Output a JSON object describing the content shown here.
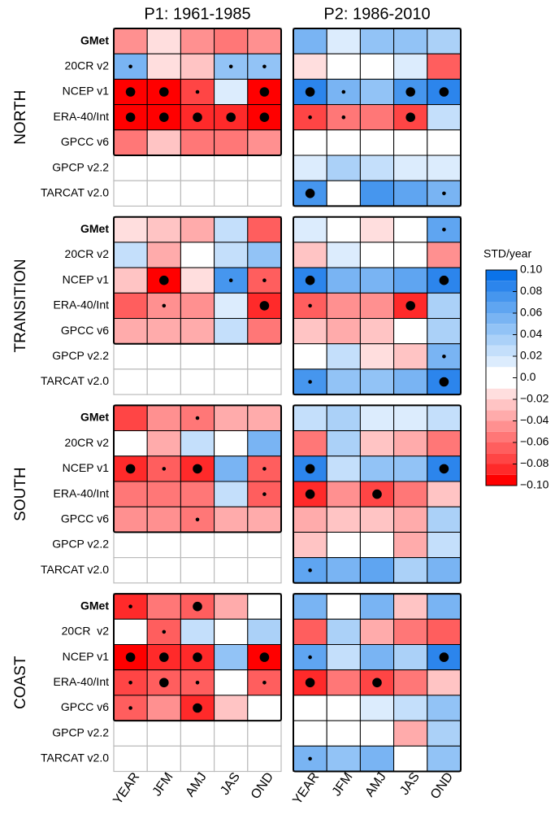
{
  "chart_data": {
    "type": "heatmap",
    "panels": [
      "P1: 1961-1985",
      "P2: 1986-2010"
    ],
    "seasons": [
      "YEAR",
      "JFM",
      "AMJ",
      "JAS",
      "OND"
    ],
    "colorbar_label": "STD/year",
    "zlim": [
      -0.1,
      0.1
    ],
    "zticks": [
      {
        "value": 0.1,
        "label": "0.10"
      },
      {
        "value": 0.08,
        "label": "0.08"
      },
      {
        "value": 0.06,
        "label": "0.06"
      },
      {
        "value": 0.04,
        "label": "0.04"
      },
      {
        "value": 0.02,
        "label": "0.02"
      },
      {
        "value": 0,
        "label": "0.0"
      },
      {
        "value": -0.02,
        "label": "−0.02"
      },
      {
        "value": -0.04,
        "label": "−0.04"
      },
      {
        "value": -0.06,
        "label": "−0.06"
      },
      {
        "value": -0.08,
        "label": "−0.08"
      },
      {
        "value": -0.1,
        "label": "−0.10"
      }
    ],
    "colors": [
      "#ff0000",
      "#ff2a2a",
      "#ff4545",
      "#ff5e5e",
      "#ff7777",
      "#ff9090",
      "#ffabab",
      "#ffc4c4",
      "#ffdede",
      "#ffffff",
      "#ffffff",
      "#dcecfd",
      "#c4dffb",
      "#abd1f8",
      "#92c3f6",
      "#79b4f3",
      "#5fa5f1",
      "#4696ee",
      "#2c85ec",
      "#0b73e9"
    ],
    "regions": [
      {
        "name": "NORTH",
        "datasets": [
          "GMet",
          "20CR v2",
          "NCEP v1",
          "ERA-40/Int",
          "GPCC v6",
          "GPCP v2.2",
          "TARCAT v2.0"
        ],
        "panels": [
          {
            "values": [
              [
                -0.045,
                -0.015,
                -0.045,
                -0.055,
                -0.045
              ],
              [
                0.055,
                -0.015,
                -0.025,
                0.045,
                0.045
              ],
              [
                -0.095,
                -0.095,
                -0.075,
                0.015,
                -0.095
              ],
              [
                -0.095,
                -0.095,
                -0.085,
                -0.085,
                -0.095
              ],
              [
                -0.055,
                -0.025,
                -0.055,
                -0.055,
                -0.045
              ],
              [
                null,
                null,
                null,
                null,
                null
              ],
              [
                null,
                null,
                null,
                null,
                null
              ]
            ],
            "dots": [
              [
                0,
                0,
                0,
                0,
                0
              ],
              [
                1,
                0,
                0,
                1,
                1
              ],
              [
                2,
                2,
                1,
                0,
                2
              ],
              [
                2,
                2,
                2,
                2,
                2
              ],
              [
                0,
                0,
                0,
                0,
                0
              ],
              [
                0,
                0,
                0,
                0,
                0
              ],
              [
                0,
                0,
                0,
                0,
                0
              ]
            ]
          },
          {
            "values": [
              [
                0.055,
                0.015,
                0.045,
                0.045,
                0.035
              ],
              [
                -0.015,
                0.005,
                0.005,
                0.015,
                -0.065
              ],
              [
                0.085,
                0.055,
                0.045,
                0.075,
                0.085
              ],
              [
                -0.075,
                -0.055,
                -0.055,
                -0.075,
                0.025
              ],
              [
                0.005,
                0.005,
                0.005,
                0.005,
                0.005
              ],
              [
                0.015,
                0.035,
                0.025,
                0.015,
                0.015
              ],
              [
                0.075,
                0.005,
                0.075,
                0.065,
                0.055
              ]
            ],
            "dots": [
              [
                0,
                0,
                0,
                0,
                0
              ],
              [
                0,
                0,
                0,
                0,
                0
              ],
              [
                2,
                1,
                0,
                2,
                2
              ],
              [
                1,
                1,
                0,
                2,
                0
              ],
              [
                0,
                0,
                0,
                0,
                0
              ],
              [
                0,
                0,
                0,
                0,
                0
              ],
              [
                2,
                0,
                0,
                0,
                1
              ]
            ]
          }
        ]
      },
      {
        "name": "TRANSITION",
        "datasets": [
          "GMet",
          "20CR v2",
          "NCEP v1",
          "ERA-40/Int",
          "GPCC v6",
          "GPCP v2.2",
          "TARCAT v2.0"
        ],
        "panels": [
          {
            "values": [
              [
                -0.015,
                -0.025,
                -0.035,
                0.025,
                -0.065
              ],
              [
                0.025,
                -0.035,
                0.005,
                0.025,
                0.045
              ],
              [
                -0.025,
                -0.095,
                -0.015,
                0.075,
                -0.065
              ],
              [
                -0.065,
                -0.045,
                -0.045,
                0.015,
                -0.085
              ],
              [
                -0.035,
                -0.035,
                -0.035,
                0.025,
                -0.055
              ],
              [
                null,
                null,
                null,
                null,
                null
              ],
              [
                null,
                null,
                null,
                null,
                null
              ]
            ],
            "dots": [
              [
                0,
                0,
                0,
                0,
                0
              ],
              [
                0,
                0,
                0,
                0,
                0
              ],
              [
                0,
                2,
                0,
                1,
                1
              ],
              [
                0,
                1,
                0,
                0,
                2
              ],
              [
                0,
                0,
                0,
                0,
                0
              ],
              [
                0,
                0,
                0,
                0,
                0
              ],
              [
                0,
                0,
                0,
                0,
                0
              ]
            ]
          },
          {
            "values": [
              [
                0.015,
                0.005,
                -0.015,
                0.005,
                0.065
              ],
              [
                -0.025,
                0.015,
                0.005,
                0.005,
                -0.045
              ],
              [
                0.085,
                0.055,
                0.055,
                0.065,
                0.085
              ],
              [
                -0.065,
                -0.045,
                -0.045,
                -0.085,
                0.035
              ],
              [
                -0.025,
                -0.035,
                -0.025,
                0.005,
                0.035
              ],
              [
                0.005,
                0.025,
                -0.015,
                -0.025,
                0.055
              ],
              [
                0.075,
                0.045,
                0.045,
                0.055,
                0.085
              ]
            ],
            "dots": [
              [
                0,
                0,
                0,
                0,
                1
              ],
              [
                0,
                0,
                0,
                0,
                0
              ],
              [
                2,
                0,
                0,
                0,
                2
              ],
              [
                1,
                0,
                0,
                2,
                0
              ],
              [
                0,
                0,
                0,
                0,
                0
              ],
              [
                0,
                0,
                0,
                0,
                1
              ],
              [
                1,
                0,
                0,
                0,
                2
              ]
            ]
          }
        ]
      },
      {
        "name": "SOUTH",
        "datasets": [
          "GMet",
          "20CR v2",
          "NCEP v1",
          "ERA-40/Int",
          "GPCC v6",
          "GPCP v2.2",
          "TARCAT v2.0"
        ],
        "panels": [
          {
            "values": [
              [
                -0.075,
                -0.045,
                -0.055,
                -0.035,
                -0.035
              ],
              [
                0.005,
                -0.035,
                0.025,
                0.005,
                0.055
              ],
              [
                -0.085,
                -0.065,
                -0.085,
                0.055,
                -0.065
              ],
              [
                -0.055,
                -0.055,
                -0.055,
                0.025,
                -0.065
              ],
              [
                -0.045,
                -0.045,
                -0.055,
                -0.035,
                -0.035
              ],
              [
                null,
                null,
                null,
                null,
                null
              ],
              [
                null,
                null,
                null,
                null,
                null
              ]
            ],
            "dots": [
              [
                0,
                0,
                1,
                0,
                0
              ],
              [
                0,
                0,
                0,
                0,
                0
              ],
              [
                2,
                1,
                2,
                0,
                1
              ],
              [
                0,
                0,
                0,
                0,
                1
              ],
              [
                0,
                0,
                1,
                0,
                0
              ],
              [
                0,
                0,
                0,
                0,
                0
              ],
              [
                0,
                0,
                0,
                0,
                0
              ]
            ]
          },
          {
            "values": [
              [
                0.025,
                0.035,
                0.015,
                0.015,
                0.025
              ],
              [
                -0.055,
                0.035,
                -0.025,
                -0.035,
                -0.055
              ],
              [
                0.085,
                0.025,
                0.045,
                0.045,
                0.085
              ],
              [
                -0.085,
                -0.045,
                -0.075,
                -0.055,
                -0.025
              ],
              [
                -0.035,
                -0.025,
                -0.025,
                -0.035,
                0.035
              ],
              [
                -0.025,
                0.005,
                0.005,
                -0.035,
                0.025
              ],
              [
                0.065,
                0.055,
                0.065,
                0.035,
                0.055
              ]
            ],
            "dots": [
              [
                0,
                0,
                0,
                0,
                0
              ],
              [
                0,
                0,
                0,
                0,
                0
              ],
              [
                2,
                0,
                0,
                0,
                2
              ],
              [
                2,
                0,
                2,
                0,
                0
              ],
              [
                0,
                0,
                0,
                0,
                0
              ],
              [
                0,
                0,
                0,
                0,
                0
              ],
              [
                1,
                0,
                0,
                0,
                0
              ]
            ]
          }
        ]
      },
      {
        "name": "COAST",
        "datasets": [
          "GMet",
          "20CR  v2",
          "NCEP v1",
          "ERA-40/Int",
          "GPCC v6",
          "GPCP v2.2",
          "TARCAT v2.0"
        ],
        "panels": [
          {
            "values": [
              [
                -0.085,
                -0.055,
                -0.065,
                -0.035,
                0.005
              ],
              [
                0.005,
                -0.065,
                0.025,
                0.005,
                0.035
              ],
              [
                -0.095,
                -0.085,
                -0.085,
                0.045,
                -0.095
              ],
              [
                -0.075,
                -0.065,
                -0.065,
                0.005,
                -0.065
              ],
              [
                -0.065,
                -0.045,
                -0.085,
                -0.025,
                0.005
              ],
              [
                null,
                null,
                null,
                null,
                null
              ],
              [
                null,
                null,
                null,
                null,
                null
              ]
            ],
            "dots": [
              [
                1,
                0,
                2,
                0,
                0
              ],
              [
                0,
                1,
                0,
                0,
                0
              ],
              [
                2,
                2,
                2,
                0,
                2
              ],
              [
                1,
                2,
                1,
                0,
                1
              ],
              [
                1,
                0,
                2,
                0,
                0
              ],
              [
                0,
                0,
                0,
                0,
                0
              ],
              [
                0,
                0,
                0,
                0,
                0
              ]
            ]
          },
          {
            "values": [
              [
                0.055,
                0.005,
                0.055,
                -0.025,
                0.055
              ],
              [
                -0.065,
                0.035,
                -0.035,
                -0.055,
                -0.065
              ],
              [
                0.065,
                0.025,
                0.055,
                0.035,
                0.085
              ],
              [
                -0.085,
                -0.055,
                -0.075,
                -0.055,
                -0.025
              ],
              [
                0.005,
                0.005,
                0.015,
                0.025,
                0.045
              ],
              [
                0.005,
                0.005,
                0.005,
                -0.035,
                0.035
              ],
              [
                0.055,
                0.045,
                0.055,
                0.005,
                0.045
              ]
            ],
            "dots": [
              [
                0,
                0,
                0,
                0,
                0
              ],
              [
                0,
                0,
                0,
                0,
                0
              ],
              [
                1,
                0,
                0,
                0,
                2
              ],
              [
                2,
                0,
                2,
                0,
                0
              ],
              [
                0,
                0,
                0,
                0,
                0
              ],
              [
                0,
                0,
                0,
                0,
                0
              ],
              [
                1,
                0,
                0,
                0,
                0
              ]
            ]
          }
        ]
      }
    ]
  }
}
